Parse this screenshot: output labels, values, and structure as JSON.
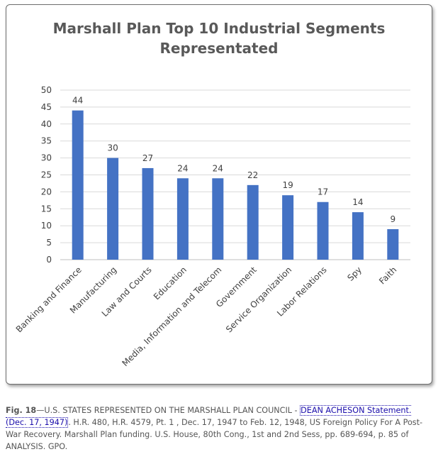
{
  "chart_data": {
    "type": "bar",
    "title": "Marshall Plan Top 10 Industrial Segments Representated",
    "title_lines": [
      "Marshall Plan Top 10 Industrial Segments",
      "Representated"
    ],
    "categories": [
      "Banking and Finance",
      "Manufacturing",
      "Law and Courts",
      "Education",
      "Media, Information and Telecom",
      "Government",
      "Service Organization",
      "Labor Relations",
      "Spy",
      "Faith"
    ],
    "values": [
      44,
      30,
      27,
      24,
      24,
      22,
      19,
      17,
      14,
      9
    ],
    "ylim": [
      0,
      50
    ],
    "yticks": [
      0,
      5,
      10,
      15,
      20,
      25,
      30,
      35,
      40,
      45,
      50
    ],
    "grid": true,
    "bar_color": "#4472c4",
    "data_labels": true,
    "xlabel": "",
    "ylabel": ""
  },
  "caption": {
    "fig_label": "Fig. 18",
    "dash": "—",
    "main_text": "U.S. STATES REPRESENTED ON THE MARSHALL PLAN COUNCIL - ",
    "link_text": "DEAN ACHESON Statement. (Dec. 17, 1947)",
    "rest_text": ". H.R. 480, H.R. 4579, Pt. 1 , Dec. 17, 1947 to Feb. 12, 1948, US Foreign Policy For A Post-War Recovery. Marshall Plan funding. U.S. House, 80th Cong., 1st and 2nd Sess, pp. 689-694, p. 85 of ANALYSIS. GPO."
  }
}
